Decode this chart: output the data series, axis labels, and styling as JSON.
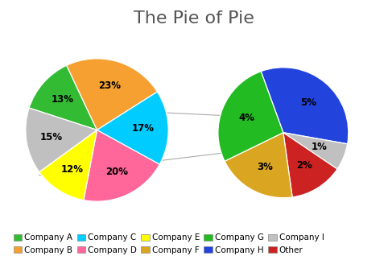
{
  "title": "The Pie of Pie",
  "title_fontsize": 16,
  "background_color": "#ffffff",
  "left_pie": {
    "pct_labels": [
      "13%",
      "23%",
      "17%",
      "20%",
      "12%",
      "15%"
    ],
    "values": [
      13,
      23,
      17,
      20,
      12,
      15
    ],
    "colors": [
      "#33BB33",
      "#F5A030",
      "#00CCFF",
      "#FF6699",
      "#FFFF00",
      "#C0C0C0"
    ],
    "startangle": 162
  },
  "right_pie": {
    "pct_labels": [
      "5%",
      "1%",
      "2%",
      "3%",
      "4%"
    ],
    "values": [
      5,
      1,
      2,
      3,
      4
    ],
    "colors": [
      "#2244DD",
      "#C0C0C0",
      "#CC2222",
      "#DAA520",
      "#22BB22"
    ],
    "startangle": 110
  },
  "legend_entries": [
    {
      "label": "Company A",
      "color": "#33BB33"
    },
    {
      "label": "Company B",
      "color": "#F5A030"
    },
    {
      "label": "Company C",
      "color": "#00CCFF"
    },
    {
      "label": "Company D",
      "color": "#FF6699"
    },
    {
      "label": "Company E",
      "color": "#FFFF00"
    },
    {
      "label": "Company F",
      "color": "#DAA520"
    },
    {
      "label": "Company G",
      "color": "#22BB22"
    },
    {
      "label": "Company H",
      "color": "#2244DD"
    },
    {
      "label": "Company I",
      "color": "#C0C0C0"
    },
    {
      "label": "Other",
      "color": "#CC2222"
    }
  ],
  "connector_color": "#aaaaaa",
  "label_fontsize": 8.5,
  "legend_fontsize": 7.5,
  "fig_width": 4.82,
  "fig_height": 3.23,
  "dpi": 100
}
